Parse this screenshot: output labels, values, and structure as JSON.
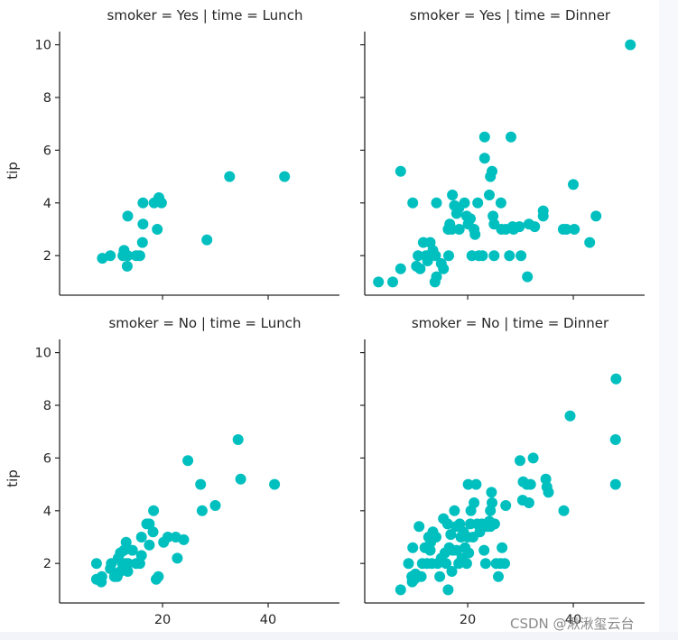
{
  "chart_data": {
    "type": "scatter",
    "layout": "facet_grid_2x2",
    "row_variable": "smoker",
    "col_variable": "time",
    "xlabel": "",
    "ylabel": "tip",
    "xlim": [
      0.5,
      53.5
    ],
    "ylim": [
      0.5,
      10.5
    ],
    "xticks": [
      20,
      40
    ],
    "yticks": [
      2,
      4,
      6,
      8,
      10
    ],
    "grid": false,
    "marker_color": "#00bfbf",
    "panels": [
      {
        "title": "smoker = Yes | time = Lunch",
        "row": 0,
        "col": 0,
        "points": [
          [
            8.6,
            1.9
          ],
          [
            10.1,
            2.0
          ],
          [
            12.7,
            2.2
          ],
          [
            12.5,
            2.0
          ],
          [
            13.4,
            2.0
          ],
          [
            13.3,
            1.6
          ],
          [
            13.4,
            3.5
          ],
          [
            15.0,
            2.0
          ],
          [
            15.7,
            2.0
          ],
          [
            16.2,
            2.5
          ],
          [
            16.3,
            3.2
          ],
          [
            16.3,
            4.0
          ],
          [
            18.4,
            4.0
          ],
          [
            19.0,
            3.0
          ],
          [
            19.3,
            4.2
          ],
          [
            19.8,
            4.0
          ],
          [
            28.4,
            2.6
          ],
          [
            32.7,
            5.0
          ],
          [
            43.1,
            5.0
          ]
        ]
      },
      {
        "title": "smoker = Yes | time = Dinner",
        "row": 0,
        "col": 1,
        "points": [
          [
            3.1,
            1.0
          ],
          [
            5.8,
            1.0
          ],
          [
            7.3,
            1.5
          ],
          [
            7.3,
            5.2
          ],
          [
            9.6,
            4.0
          ],
          [
            10.6,
            2.0
          ],
          [
            10.3,
            1.6
          ],
          [
            11.0,
            1.5
          ],
          [
            11.6,
            2.5
          ],
          [
            12.9,
            2.5
          ],
          [
            12.4,
            1.8
          ],
          [
            12.1,
            2.0
          ],
          [
            13.4,
            2.2
          ],
          [
            13.9,
            2.0
          ],
          [
            14.1,
            1.2
          ],
          [
            13.8,
            1.0
          ],
          [
            14.1,
            4.0
          ],
          [
            15.0,
            1.7
          ],
          [
            15.4,
            1.5
          ],
          [
            16.4,
            2.0
          ],
          [
            16.3,
            3.0
          ],
          [
            16.6,
            3.2
          ],
          [
            17.1,
            4.3
          ],
          [
            17.5,
            3.9
          ],
          [
            17.9,
            3.6
          ],
          [
            18.3,
            3.8
          ],
          [
            18.4,
            3.0
          ],
          [
            17.0,
            3.0
          ],
          [
            19.4,
            4.0
          ],
          [
            19.8,
            3.5
          ],
          [
            20.1,
            3.2
          ],
          [
            20.5,
            3.4
          ],
          [
            20.8,
            2.0
          ],
          [
            21.2,
            3.0
          ],
          [
            21.4,
            2.8
          ],
          [
            21.9,
            4.0
          ],
          [
            22.1,
            2.0
          ],
          [
            22.8,
            2.0
          ],
          [
            23.2,
            5.7
          ],
          [
            23.2,
            6.5
          ],
          [
            24.1,
            4.3
          ],
          [
            24.3,
            5.0
          ],
          [
            24.6,
            5.2
          ],
          [
            24.8,
            3.5
          ],
          [
            25.0,
            3.2
          ],
          [
            26.3,
            4.0
          ],
          [
            25.0,
            2.0
          ],
          [
            26.4,
            3.0
          ],
          [
            27.2,
            3.0
          ],
          [
            28.2,
            6.5
          ],
          [
            28.5,
            3.1
          ],
          [
            27.9,
            2.0
          ],
          [
            28.7,
            3.0
          ],
          [
            29.8,
            3.1
          ],
          [
            30.1,
            2.0
          ],
          [
            31.6,
            3.2
          ],
          [
            32.7,
            3.1
          ],
          [
            31.3,
            1.2
          ],
          [
            34.3,
            3.5
          ],
          [
            34.3,
            3.7
          ],
          [
            38.1,
            3.0
          ],
          [
            38.7,
            3.0
          ],
          [
            40.2,
            3.0
          ],
          [
            40.0,
            4.7
          ],
          [
            43.1,
            2.5
          ],
          [
            44.3,
            3.5
          ],
          [
            50.8,
            10.0
          ]
        ]
      },
      {
        "title": "smoker = No | time = Lunch",
        "row": 1,
        "col": 0,
        "points": [
          [
            7.5,
            2.0
          ],
          [
            7.5,
            1.4
          ],
          [
            8.5,
            1.5
          ],
          [
            8.4,
            1.3
          ],
          [
            10.1,
            1.8
          ],
          [
            10.3,
            2.0
          ],
          [
            10.9,
            1.5
          ],
          [
            11.4,
            1.5
          ],
          [
            11.6,
            2.2
          ],
          [
            12.0,
            1.7
          ],
          [
            12.4,
            2.0
          ],
          [
            12.0,
            2.4
          ],
          [
            12.7,
            2.5
          ],
          [
            13.0,
            2.0
          ],
          [
            13.1,
            2.8
          ],
          [
            13.4,
            1.7
          ],
          [
            13.5,
            2.0
          ],
          [
            14.3,
            2.5
          ],
          [
            15.0,
            2.0
          ],
          [
            15.7,
            2.0
          ],
          [
            16.0,
            2.3
          ],
          [
            16.0,
            3.0
          ],
          [
            17.0,
            3.5
          ],
          [
            17.5,
            3.5
          ],
          [
            17.5,
            2.7
          ],
          [
            18.2,
            3.2
          ],
          [
            18.3,
            4.0
          ],
          [
            18.8,
            1.4
          ],
          [
            19.2,
            1.5
          ],
          [
            20.2,
            2.8
          ],
          [
            21.0,
            3.0
          ],
          [
            22.5,
            3.0
          ],
          [
            22.8,
            2.2
          ],
          [
            24.0,
            2.9
          ],
          [
            24.8,
            5.9
          ],
          [
            27.2,
            5.0
          ],
          [
            27.5,
            4.0
          ],
          [
            30.0,
            4.2
          ],
          [
            34.3,
            6.7
          ],
          [
            34.8,
            5.2
          ],
          [
            41.2,
            5.0
          ]
        ]
      },
      {
        "title": "smoker = No | time = Dinner",
        "row": 1,
        "col": 1,
        "points": [
          [
            7.3,
            1.0
          ],
          [
            8.8,
            2.0
          ],
          [
            9.6,
            2.6
          ],
          [
            9.4,
            1.5
          ],
          [
            9.5,
            1.3
          ],
          [
            9.9,
            1.4
          ],
          [
            10.1,
            1.6
          ],
          [
            10.8,
            3.4
          ],
          [
            11.2,
            1.5
          ],
          [
            11.4,
            2.0
          ],
          [
            11.9,
            2.6
          ],
          [
            12.3,
            2.0
          ],
          [
            12.6,
            3.0
          ],
          [
            12.9,
            2.5
          ],
          [
            13.2,
            2.0
          ],
          [
            13.4,
            3.2
          ],
          [
            13.0,
            2.8
          ],
          [
            14.0,
            3.0
          ],
          [
            14.3,
            2.0
          ],
          [
            14.7,
            1.5
          ],
          [
            15.0,
            2.2
          ],
          [
            15.4,
            3.7
          ],
          [
            15.7,
            2.4
          ],
          [
            15.9,
            2.0
          ],
          [
            16.2,
            3.5
          ],
          [
            16.5,
            2.6
          ],
          [
            16.3,
            1.0
          ],
          [
            16.8,
            3.1
          ],
          [
            17.2,
            2.5
          ],
          [
            17.0,
            1.7
          ],
          [
            17.5,
            4.0
          ],
          [
            17.8,
            3.4
          ],
          [
            17.9,
            2.5
          ],
          [
            18.3,
            2.0
          ],
          [
            18.5,
            3.5
          ],
          [
            18.7,
            3.0
          ],
          [
            18.9,
            2.2
          ],
          [
            19.2,
            3.2
          ],
          [
            19.5,
            2.6
          ],
          [
            19.8,
            2.0
          ],
          [
            20.0,
            3.0
          ],
          [
            20.2,
            2.4
          ],
          [
            20.1,
            5.0
          ],
          [
            20.6,
            4.0
          ],
          [
            20.5,
            3.5
          ],
          [
            21.0,
            3.0
          ],
          [
            21.2,
            4.3
          ],
          [
            21.6,
            5.0
          ],
          [
            21.8,
            3.5
          ],
          [
            22.3,
            3.2
          ],
          [
            22.7,
            3.5
          ],
          [
            23.1,
            2.5
          ],
          [
            23.4,
            2.0
          ],
          [
            23.7,
            3.4
          ],
          [
            24.1,
            3.6
          ],
          [
            24.3,
            4.0
          ],
          [
            24.6,
            4.3
          ],
          [
            24.5,
            4.7
          ],
          [
            24.3,
            3.4
          ],
          [
            25.1,
            3.5
          ],
          [
            25.4,
            2.0
          ],
          [
            25.8,
            1.5
          ],
          [
            26.2,
            2.0
          ],
          [
            26.5,
            2.6
          ],
          [
            27.0,
            2.0
          ],
          [
            27.2,
            4.2
          ],
          [
            29.9,
            5.9
          ],
          [
            30.5,
            5.1
          ],
          [
            30.4,
            4.4
          ],
          [
            31.2,
            5.0
          ],
          [
            31.6,
            4.3
          ],
          [
            32.4,
            6.0
          ],
          [
            31.9,
            5.0
          ],
          [
            34.8,
            5.2
          ],
          [
            35.0,
            4.9
          ],
          [
            35.3,
            4.7
          ],
          [
            38.2,
            4.0
          ],
          [
            39.4,
            7.6
          ],
          [
            48.1,
            9.0
          ],
          [
            48.0,
            6.7
          ],
          [
            48.0,
            5.0
          ]
        ]
      }
    ]
  },
  "watermark": "CSDN @湫湫玺云台"
}
